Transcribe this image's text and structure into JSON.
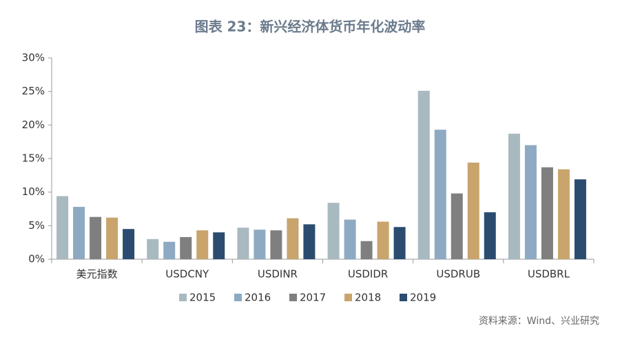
{
  "chart_data": {
    "type": "bar",
    "title": "图表 23：新兴经济体货币年化波动率",
    "source": "资料来源：Wind、兴业研究",
    "categories": [
      "美元指数",
      "USDCNY",
      "USDINR",
      "USDIDR",
      "USDRUB",
      "USDBRL"
    ],
    "series": [
      {
        "name": "2015",
        "color": "#a9b9c0",
        "values": [
          9.4,
          3.0,
          4.7,
          8.4,
          25.1,
          18.7
        ]
      },
      {
        "name": "2016",
        "color": "#8eaac2",
        "values": [
          7.8,
          2.6,
          4.4,
          5.9,
          19.3,
          17.0
        ]
      },
      {
        "name": "2017",
        "color": "#7f7f7f",
        "values": [
          6.3,
          3.3,
          4.3,
          2.7,
          9.8,
          13.7
        ]
      },
      {
        "name": "2018",
        "color": "#c9a46c",
        "values": [
          6.2,
          4.3,
          6.1,
          5.6,
          14.4,
          13.4
        ]
      },
      {
        "name": "2019",
        "color": "#2b4c6f",
        "values": [
          4.5,
          4.0,
          5.2,
          4.8,
          7.0,
          11.9
        ]
      }
    ],
    "ylim": [
      0,
      30
    ],
    "yticks": [
      {
        "value": 0,
        "label": "0%"
      },
      {
        "value": 5,
        "label": "5%"
      },
      {
        "value": 10,
        "label": "10%"
      },
      {
        "value": 15,
        "label": "15%"
      },
      {
        "value": 20,
        "label": "20%"
      },
      {
        "value": 25,
        "label": "25%"
      },
      {
        "value": 30,
        "label": "30%"
      }
    ]
  }
}
